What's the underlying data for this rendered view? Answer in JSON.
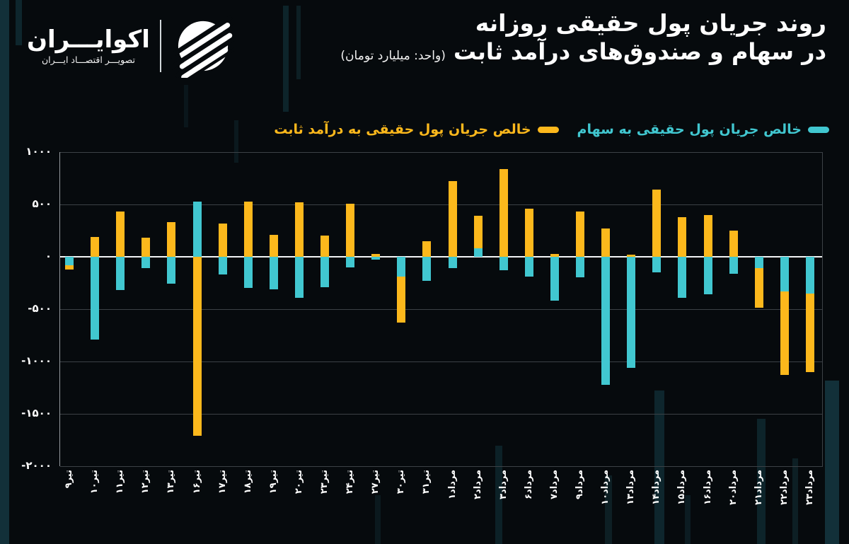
{
  "brand": {
    "name": "اکوایـــران",
    "tagline": "تصویـــر اقتصـــاد ایـــران"
  },
  "title": {
    "line1": "روند جریان پول حقیقی روزانه",
    "line2": "در سهام و صندوق‌های درآمد ثابت",
    "unit": "(واحد: میلیارد تومان)"
  },
  "legend": [
    {
      "label": "خالص جریان پول حقیقی به سهام",
      "color": "#41c7d0"
    },
    {
      "label": "خالص جریان پول حقیقی به درآمد ثابت",
      "color": "#fcb81c"
    }
  ],
  "colors": {
    "stocks": "#41c7d0",
    "fixed_income": "#fcb81c",
    "background": "#060a0d",
    "gridline": "#3c4146",
    "zero_line": "#f2f4f5"
  },
  "chart_data": {
    "type": "bar",
    "title": "روند جریان پول حقیقی روزانه در سهام و صندوق‌های درآمد ثابت",
    "unit": "میلیارد تومان",
    "layout": "two series drawn at the same x position (overlapped), stocks series in front",
    "legend_position": "top",
    "grid": true,
    "ylim": [
      -2000,
      1000
    ],
    "y_ticks": [
      {
        "value": 1000,
        "label": "۱۰۰۰"
      },
      {
        "value": 500,
        "label": "۵۰۰"
      },
      {
        "value": 0,
        "label": "۰"
      },
      {
        "value": -500,
        "label": "-۵۰۰"
      },
      {
        "value": -1000,
        "label": "-۱۰۰۰"
      },
      {
        "value": -1500,
        "label": "-۱۵۰۰"
      },
      {
        "value": -2000,
        "label": "-۲۰۰۰"
      }
    ],
    "categories": [
      "تیر۹",
      "تیر۱۰",
      "تیر۱۱",
      "تیر۱۲",
      "تیر۱۳",
      "تیر۱۶",
      "تیر۱۷",
      "تیر۱۸",
      "تیر۱۹",
      "تیر۲۰",
      "تیر۲۳",
      "تیر۲۴",
      "تیر۲۷",
      "تیر۳۰",
      "تیر۳۱",
      "مرداد۱",
      "مرداد۲",
      "مرداد۳",
      "مرداد۶",
      "مرداد۷",
      "مرداد۹",
      "مرداد۱۰",
      "مرداد۱۳",
      "مرداد۱۴",
      "مرداد۱۵",
      "مرداد۱۶",
      "مرداد۲۰",
      "مرداد۲۱",
      "مرداد۲۲",
      "مرداد۲۳"
    ],
    "series": [
      {
        "name": "خالص جریان پول حقیقی به درآمد ثابت",
        "color": "#fcb81c",
        "z": "back",
        "values": [
          -120,
          190,
          430,
          180,
          330,
          -1710,
          320,
          530,
          210,
          520,
          200,
          510,
          30,
          -630,
          150,
          720,
          390,
          840,
          460,
          30,
          430,
          270,
          20,
          640,
          380,
          400,
          250,
          -485,
          -1130,
          -1100
        ]
      },
      {
        "name": "خالص جریان پول حقیقی به سهام",
        "color": "#41c7d0",
        "z": "front",
        "values": [
          -80,
          -790,
          -320,
          -110,
          -260,
          530,
          -170,
          -300,
          -310,
          -390,
          -290,
          -100,
          -25,
          -190,
          -230,
          -110,
          80,
          -130,
          -190,
          -420,
          -195,
          -1220,
          -1060,
          -150,
          -390,
          -355,
          -160,
          -110,
          -330,
          -350
        ]
      }
    ]
  }
}
